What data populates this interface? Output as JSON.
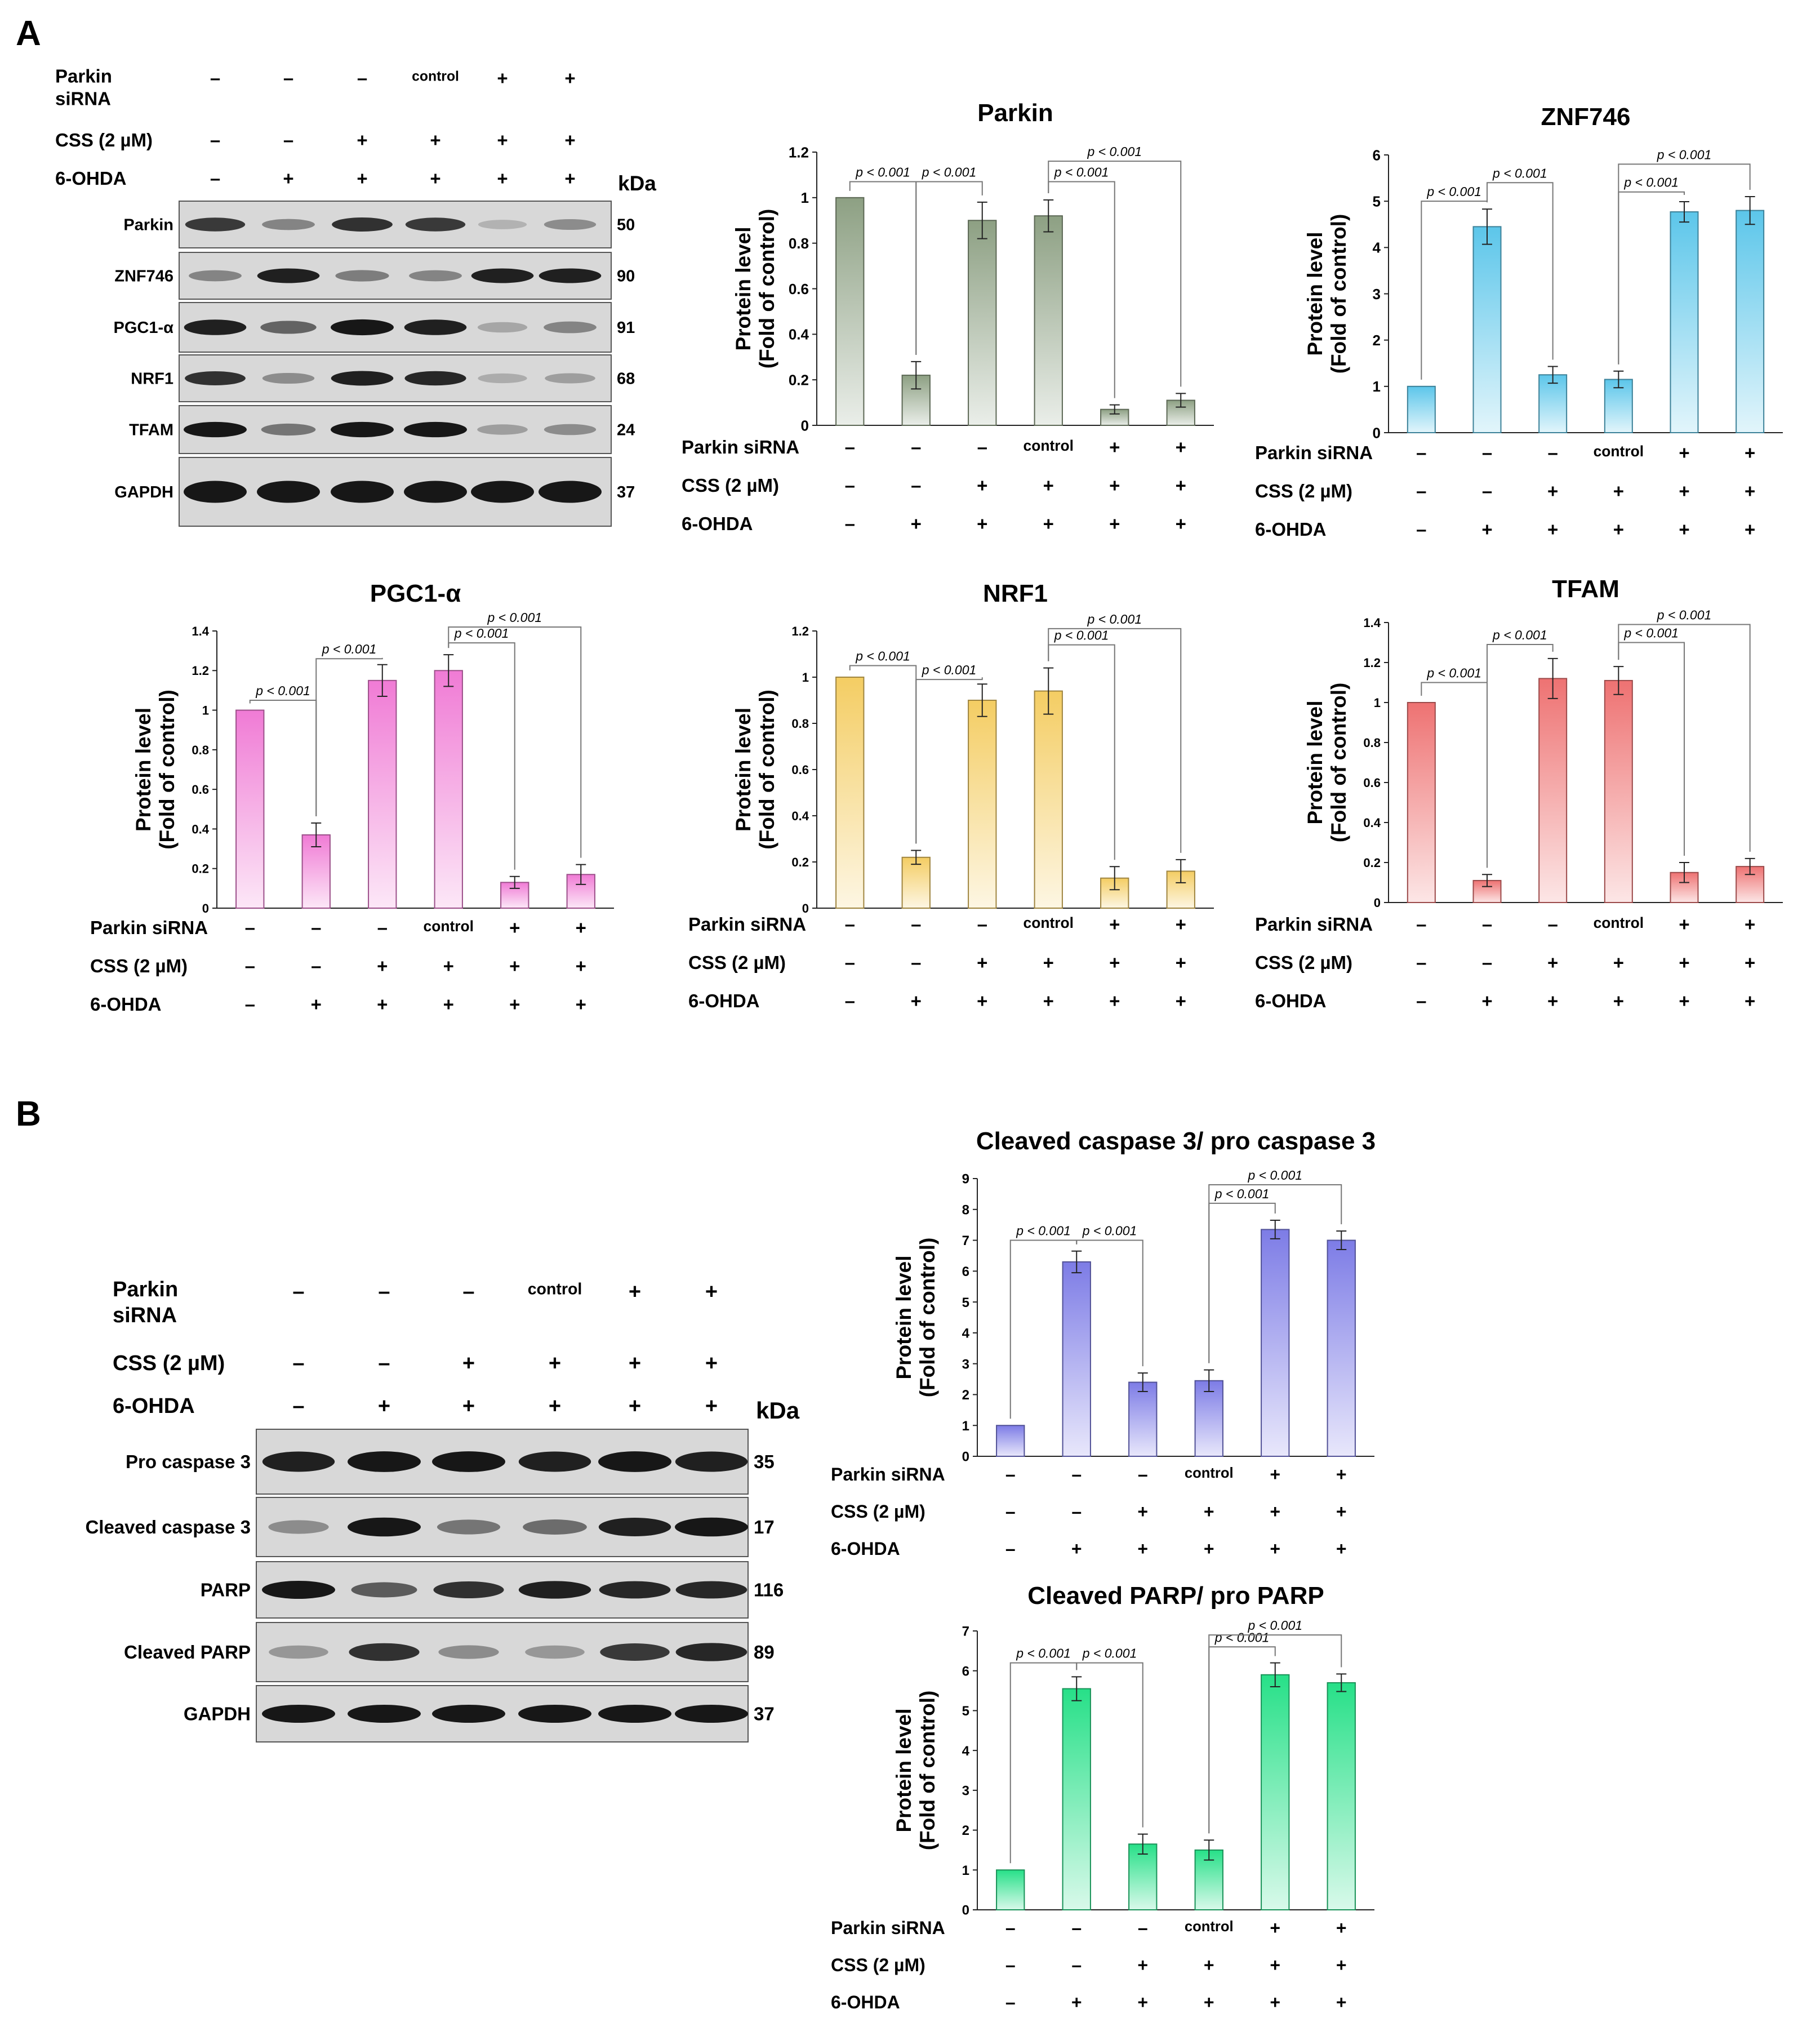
{
  "figure": {
    "panel_a_label": "A",
    "panel_b_label": "B",
    "row_labels": [
      "Parkin siRNA",
      "CSS (2 µM)",
      "6-OHDA"
    ],
    "blot_row_label_parkin": [
      "Parkin",
      "siRNA"
    ],
    "kda_label": "kDa",
    "conditions": [
      [
        "–",
        "–",
        "–",
        "control",
        "+",
        "+"
      ],
      [
        "–",
        "–",
        "+",
        "+",
        "+",
        "+"
      ],
      [
        "–",
        "+",
        "+",
        "+",
        "+",
        "+"
      ]
    ]
  },
  "blots": {
    "A": {
      "bands": [
        "Parkin",
        "ZNF746",
        "PGC1-α",
        "NRF1",
        "TFAM",
        "GAPDH"
      ],
      "kda": [
        "50",
        "90",
        "91",
        "68",
        "24",
        "37"
      ]
    },
    "B": {
      "bands": [
        "Pro caspase 3",
        "Cleaved caspase 3",
        "PARP",
        "Cleaved PARP",
        "GAPDH"
      ],
      "kda": [
        "35",
        "17",
        "116",
        "89",
        "37"
      ]
    }
  },
  "chart_data": [
    {
      "type": "bar",
      "title": "Parkin",
      "ylabel": [
        "Protein level",
        "(Fold of control)"
      ],
      "ylim": [
        0,
        1.2
      ],
      "yticks": [
        "0",
        "0.2",
        "0.4",
        "0.6",
        "0.8",
        "1",
        "1.2"
      ],
      "values": [
        1.0,
        0.22,
        0.9,
        0.92,
        0.07,
        0.11
      ],
      "errors": [
        0,
        0.06,
        0.08,
        0.07,
        0.02,
        0.03
      ],
      "color": "#8da083",
      "brackets": [
        {
          "from": 0,
          "to": 1,
          "level": 1.07,
          "label": "p < 0.001"
        },
        {
          "from": 1,
          "to": 2,
          "level": 1.07,
          "label": "p < 0.001"
        },
        {
          "from": 3,
          "to": 4,
          "level": 1.07,
          "label": "p < 0.001"
        },
        {
          "from": 3,
          "to": 5,
          "level": 1.16,
          "label": "p < 0.001"
        }
      ]
    },
    {
      "type": "bar",
      "title": "ZNF746",
      "ylabel": [
        "Protein level",
        "(Fold of control)"
      ],
      "ylim": [
        0,
        6
      ],
      "yticks": [
        "0",
        "1",
        "2",
        "3",
        "4",
        "5",
        "6"
      ],
      "values": [
        1.0,
        4.45,
        1.25,
        1.15,
        4.77,
        4.8
      ],
      "errors": [
        0,
        0.38,
        0.18,
        0.18,
        0.22,
        0.3
      ],
      "color": "#5cc6ea",
      "brackets": [
        {
          "from": 0,
          "to": 1,
          "level": 5.0,
          "label": "p < 0.001"
        },
        {
          "from": 1,
          "to": 2,
          "level": 5.4,
          "label": "p < 0.001"
        },
        {
          "from": 3,
          "to": 4,
          "level": 5.2,
          "label": "p < 0.001"
        },
        {
          "from": 3,
          "to": 5,
          "level": 5.8,
          "label": "p < 0.001"
        }
      ]
    },
    {
      "type": "bar",
      "title": "PGC1-α",
      "ylabel": [
        "Protein level",
        "(Fold of control)"
      ],
      "ylim": [
        0,
        1.4
      ],
      "yticks": [
        "0",
        "0.2",
        "0.4",
        "0.6",
        "0.8",
        "1",
        "1.2",
        "1.4"
      ],
      "values": [
        1.0,
        0.37,
        1.15,
        1.2,
        0.13,
        0.17
      ],
      "errors": [
        0,
        0.06,
        0.08,
        0.08,
        0.03,
        0.05
      ],
      "color": "#f07bd5",
      "brackets": [
        {
          "from": 0,
          "to": 1,
          "level": 1.05,
          "label": "p < 0.001"
        },
        {
          "from": 1,
          "to": 2,
          "level": 1.26,
          "label": "p < 0.001"
        },
        {
          "from": 3,
          "to": 4,
          "level": 1.34,
          "label": "p < 0.001"
        },
        {
          "from": 3,
          "to": 5,
          "level": 1.42,
          "label": "p < 0.001"
        }
      ]
    },
    {
      "type": "bar",
      "title": "NRF1",
      "ylabel": [
        "Protein level",
        "(Fold of control)"
      ],
      "ylim": [
        0,
        1.2
      ],
      "yticks": [
        "0",
        "0.2",
        "0.4",
        "0.6",
        "0.8",
        "1",
        "1.2"
      ],
      "values": [
        1.0,
        0.22,
        0.9,
        0.94,
        0.13,
        0.16
      ],
      "errors": [
        0,
        0.03,
        0.07,
        0.1,
        0.05,
        0.05
      ],
      "color": "#f4cd63",
      "brackets": [
        {
          "from": 0,
          "to": 1,
          "level": 1.05,
          "label": "p < 0.001"
        },
        {
          "from": 1,
          "to": 2,
          "level": 0.99,
          "label": "p < 0.001"
        },
        {
          "from": 3,
          "to": 4,
          "level": 1.14,
          "label": "p < 0.001"
        },
        {
          "from": 3,
          "to": 5,
          "level": 1.21,
          "label": "p < 0.001"
        }
      ]
    },
    {
      "type": "bar",
      "title": "TFAM",
      "ylabel": [
        "Protein level",
        "(Fold of control)"
      ],
      "ylim": [
        0,
        1.4
      ],
      "yticks": [
        "0",
        "0.2",
        "0.4",
        "0.6",
        "0.8",
        "1",
        "1.2",
        "1.4"
      ],
      "values": [
        1.0,
        0.11,
        1.12,
        1.11,
        0.15,
        0.18
      ],
      "errors": [
        0,
        0.03,
        0.1,
        0.07,
        0.05,
        0.04
      ],
      "color": "#ee7272",
      "brackets": [
        {
          "from": 0,
          "to": 1,
          "level": 1.1,
          "label": "p < 0.001"
        },
        {
          "from": 1,
          "to": 2,
          "level": 1.29,
          "label": "p < 0.001"
        },
        {
          "from": 3,
          "to": 4,
          "level": 1.3,
          "label": "p < 0.001"
        },
        {
          "from": 3,
          "to": 5,
          "level": 1.39,
          "label": "p < 0.001"
        }
      ]
    },
    {
      "type": "bar",
      "title": "Cleaved caspase 3/ pro caspase 3",
      "ylabel": [
        "Protein level",
        "(Fold of control)"
      ],
      "ylim": [
        0,
        9
      ],
      "yticks": [
        "0",
        "1",
        "2",
        "3",
        "4",
        "5",
        "6",
        "7",
        "8",
        "9"
      ],
      "values": [
        1.0,
        6.3,
        2.4,
        2.45,
        7.35,
        7.0
      ],
      "errors": [
        0,
        0.35,
        0.3,
        0.35,
        0.3,
        0.3
      ],
      "color": "#7d7ce6",
      "brackets": [
        {
          "from": 0,
          "to": 1,
          "level": 7.0,
          "label": "p < 0.001"
        },
        {
          "from": 1,
          "to": 2,
          "level": 7.0,
          "label": "p < 0.001"
        },
        {
          "from": 3,
          "to": 4,
          "level": 8.2,
          "label": "p < 0.001"
        },
        {
          "from": 3,
          "to": 5,
          "level": 8.8,
          "label": "p < 0.001"
        }
      ]
    },
    {
      "type": "bar",
      "title": "Cleaved PARP/ pro PARP",
      "ylabel": [
        "Protein level",
        "(Fold of control)"
      ],
      "ylim": [
        0,
        7
      ],
      "yticks": [
        "0",
        "1",
        "2",
        "3",
        "4",
        "5",
        "6",
        "7"
      ],
      "values": [
        1.0,
        5.55,
        1.65,
        1.5,
        5.9,
        5.7
      ],
      "errors": [
        0,
        0.3,
        0.25,
        0.25,
        0.3,
        0.22
      ],
      "color": "#27e088",
      "brackets": [
        {
          "from": 0,
          "to": 1,
          "level": 6.2,
          "label": "p < 0.001"
        },
        {
          "from": 1,
          "to": 2,
          "level": 6.2,
          "label": "p < 0.001"
        },
        {
          "from": 3,
          "to": 4,
          "level": 6.6,
          "label": "p < 0.001"
        },
        {
          "from": 3,
          "to": 5,
          "level": 6.9,
          "label": "p < 0.001"
        }
      ]
    }
  ]
}
